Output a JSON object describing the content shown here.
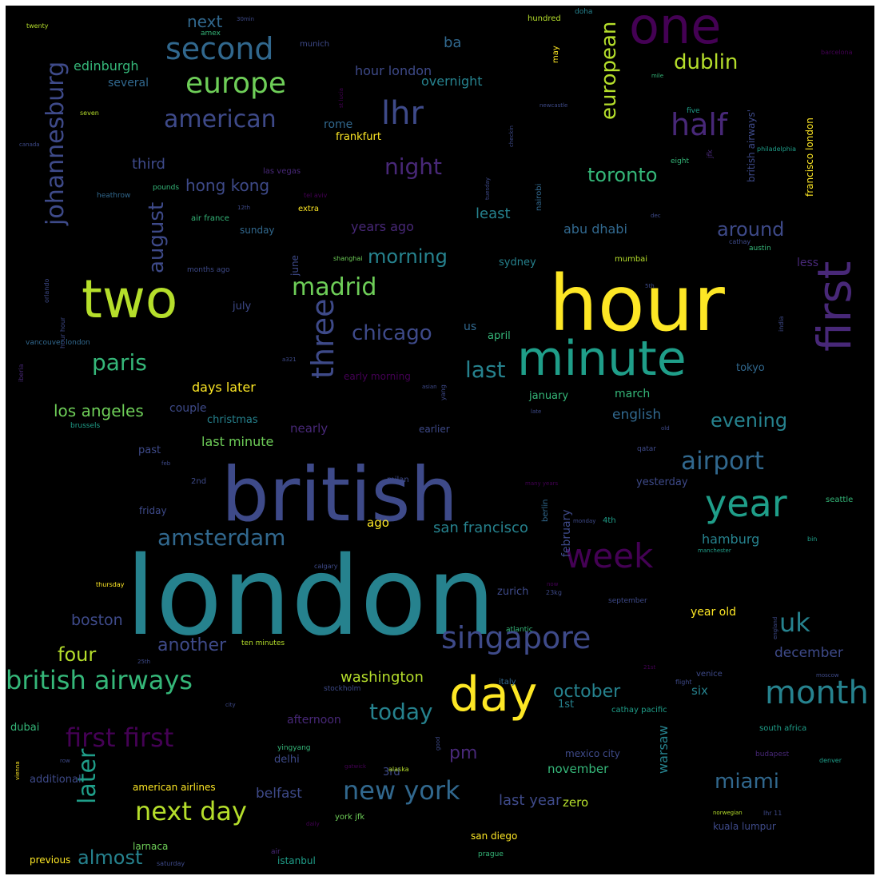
{
  "palette": {
    "background": "#000000",
    "p1": "#440154",
    "p2": "#482878",
    "p3": "#3e4a89",
    "p4": "#31688e",
    "p5": "#26828e",
    "p6": "#1f9e89",
    "p7": "#35b779",
    "p8": "#6ece58",
    "p9": "#b5de2b",
    "p10": "#fde725"
  },
  "words": [
    {
      "text": "london",
      "color": "#26828e"
    },
    {
      "text": "hour",
      "color": "#fde725"
    },
    {
      "text": "british",
      "color": "#3e4a89"
    },
    {
      "text": "minute",
      "color": "#1f9e89"
    },
    {
      "text": "two",
      "color": "#b5de2b"
    },
    {
      "text": "first",
      "color": "#482878"
    },
    {
      "text": "one",
      "color": "#440154"
    },
    {
      "text": "day",
      "color": "#fde725"
    },
    {
      "text": "year",
      "color": "#1f9e89"
    },
    {
      "text": "singapore",
      "color": "#3e4a89"
    },
    {
      "text": "week",
      "color": "#440154"
    },
    {
      "text": "month",
      "color": "#26828e"
    },
    {
      "text": "three",
      "color": "#3e4a89"
    },
    {
      "text": "second",
      "color": "#31688e"
    },
    {
      "text": "europe",
      "color": "#6ece58"
    },
    {
      "text": "lhr",
      "color": "#3e4a89"
    },
    {
      "text": "half",
      "color": "#482878"
    },
    {
      "text": "british airways",
      "color": "#35b779"
    },
    {
      "text": "first first",
      "color": "#440154"
    },
    {
      "text": "new york",
      "color": "#31688e"
    },
    {
      "text": "next day",
      "color": "#b5de2b"
    },
    {
      "text": "airport",
      "color": "#31688e"
    },
    {
      "text": "american",
      "color": "#3e4a89"
    },
    {
      "text": "johannesburg",
      "color": "#3e4a89"
    },
    {
      "text": "later",
      "color": "#1f9e89"
    },
    {
      "text": "amsterdam",
      "color": "#31688e"
    },
    {
      "text": "madrid",
      "color": "#6ece58"
    },
    {
      "text": "uk",
      "color": "#26828e"
    },
    {
      "text": "paris",
      "color": "#35b779"
    },
    {
      "text": "european",
      "color": "#b5de2b"
    },
    {
      "text": "night",
      "color": "#482878"
    },
    {
      "text": "today",
      "color": "#26828e"
    },
    {
      "text": "last",
      "color": "#26828e"
    },
    {
      "text": "chicago",
      "color": "#3e4a89"
    },
    {
      "text": "morning",
      "color": "#26828e"
    },
    {
      "text": "august",
      "color": "#3e4a89"
    },
    {
      "text": "dublin",
      "color": "#b5de2b"
    },
    {
      "text": "toronto",
      "color": "#35b779"
    },
    {
      "text": "around",
      "color": "#3e4a89"
    },
    {
      "text": "miami",
      "color": "#31688e"
    },
    {
      "text": "evening",
      "color": "#26828e"
    },
    {
      "text": "los angeles",
      "color": "#6ece58"
    },
    {
      "text": "october",
      "color": "#26828e"
    },
    {
      "text": "four",
      "color": "#b5de2b"
    },
    {
      "text": "almost",
      "color": "#26828e"
    },
    {
      "text": "another",
      "color": "#3e4a89"
    },
    {
      "text": "washington",
      "color": "#b5de2b"
    },
    {
      "text": "pm",
      "color": "#482878"
    },
    {
      "text": "san francisco",
      "color": "#26828e"
    },
    {
      "text": "boston",
      "color": "#3e4a89"
    },
    {
      "text": "next",
      "color": "#31688e"
    },
    {
      "text": "edinburgh",
      "color": "#35b779"
    },
    {
      "text": "hong kong",
      "color": "#3e4a89"
    },
    {
      "text": "hour london",
      "color": "#3e4a89"
    },
    {
      "text": "overnight",
      "color": "#26828e"
    },
    {
      "text": "days later",
      "color": "#fde725"
    },
    {
      "text": "last minute",
      "color": "#6ece58"
    },
    {
      "text": "ba",
      "color": "#31688e"
    },
    {
      "text": "least",
      "color": "#26828e"
    },
    {
      "text": "abu dhabi",
      "color": "#31688e"
    },
    {
      "text": "hamburg",
      "color": "#26828e"
    },
    {
      "text": "years ago",
      "color": "#482878"
    },
    {
      "text": "third",
      "color": "#3e4a89"
    },
    {
      "text": "english",
      "color": "#31688e"
    },
    {
      "text": "december",
      "color": "#3e4a89"
    },
    {
      "text": "belfast",
      "color": "#3e4a89"
    },
    {
      "text": "last year",
      "color": "#3e4a89"
    },
    {
      "text": "afternoon",
      "color": "#482878"
    },
    {
      "text": "warsaw",
      "color": "#26828e"
    },
    {
      "text": "november",
      "color": "#35b779"
    },
    {
      "text": "ago",
      "color": "#fde725"
    },
    {
      "text": "rome",
      "color": "#31688e"
    },
    {
      "text": "frankfurt",
      "color": "#fde725"
    },
    {
      "text": "several",
      "color": "#31688e"
    },
    {
      "text": "couple",
      "color": "#3e4a89"
    },
    {
      "text": "christmas",
      "color": "#26828e"
    },
    {
      "text": "nearly",
      "color": "#482878"
    },
    {
      "text": "year old",
      "color": "#fde725"
    },
    {
      "text": "zurich",
      "color": "#3e4a89"
    },
    {
      "text": "dubai",
      "color": "#35b779"
    },
    {
      "text": "zero",
      "color": "#b5de2b"
    },
    {
      "text": "six",
      "color": "#26828e"
    },
    {
      "text": "sydney",
      "color": "#26828e"
    },
    {
      "text": "april",
      "color": "#35b779"
    },
    {
      "text": "july",
      "color": "#3e4a89"
    },
    {
      "text": "us",
      "color": "#31688e"
    },
    {
      "text": "past",
      "color": "#3e4a89"
    },
    {
      "text": "earlier",
      "color": "#3e4a89"
    },
    {
      "text": "january",
      "color": "#35b779"
    },
    {
      "text": "march",
      "color": "#35b779"
    },
    {
      "text": "tokyo",
      "color": "#31688e"
    },
    {
      "text": "less",
      "color": "#482878"
    },
    {
      "text": "yesterday",
      "color": "#3e4a89"
    },
    {
      "text": "february",
      "color": "#3e4a89"
    },
    {
      "text": "1st",
      "color": "#26828e"
    },
    {
      "text": "3rd",
      "color": "#3e4a89"
    },
    {
      "text": "delhi",
      "color": "#3e4a89"
    },
    {
      "text": "additional",
      "color": "#3e4a89"
    },
    {
      "text": "american airlines",
      "color": "#fde725"
    },
    {
      "text": "kuala lumpur",
      "color": "#3e4a89"
    },
    {
      "text": "istanbul",
      "color": "#1f9e89"
    },
    {
      "text": "san diego",
      "color": "#fde725"
    },
    {
      "text": "mexico city",
      "color": "#3e4a89"
    },
    {
      "text": "friday",
      "color": "#3e4a89"
    },
    {
      "text": "sunday",
      "color": "#31688e"
    },
    {
      "text": "june",
      "color": "#3e4a89"
    },
    {
      "text": "british airways'",
      "color": "#3e4a89"
    },
    {
      "text": "francisco london",
      "color": "#fde725"
    },
    {
      "text": "early morning",
      "color": "#440154"
    },
    {
      "text": "larnaca",
      "color": "#6ece58"
    },
    {
      "text": "previous",
      "color": "#fde725"
    },
    {
      "text": "york jfk",
      "color": "#6ece58"
    },
    {
      "text": "hundred",
      "color": "#b5de2b"
    },
    {
      "text": "may",
      "color": "#fde725"
    },
    {
      "text": "munich",
      "color": "#3e4a89"
    },
    {
      "text": "amex",
      "color": "#35b779"
    },
    {
      "text": "twenty",
      "color": "#b5de2b"
    },
    {
      "text": "30min",
      "color": "#3e4a89"
    },
    {
      "text": "doha",
      "color": "#26828e"
    },
    {
      "text": "barcelona",
      "color": "#440154"
    },
    {
      "text": "mile",
      "color": "#35b779"
    },
    {
      "text": "five",
      "color": "#1f9e89"
    },
    {
      "text": "eight",
      "color": "#35b779"
    },
    {
      "text": "jfk",
      "color": "#482878"
    },
    {
      "text": "philadelphia",
      "color": "#1f9e89"
    },
    {
      "text": "newcastle",
      "color": "#3e4a89"
    },
    {
      "text": "st lucia",
      "color": "#440154"
    },
    {
      "text": "checkin",
      "color": "#3e4a89"
    },
    {
      "text": "seven",
      "color": "#b5de2b"
    },
    {
      "text": "canada",
      "color": "#3e4a89"
    },
    {
      "text": "heathrow",
      "color": "#31688e"
    },
    {
      "text": "pounds",
      "color": "#35b779"
    },
    {
      "text": "las vegas",
      "color": "#482878"
    },
    {
      "text": "tel aviv",
      "color": "#440154"
    },
    {
      "text": "12th",
      "color": "#3e4a89"
    },
    {
      "text": "extra",
      "color": "#fde725"
    },
    {
      "text": "air france",
      "color": "#35b779"
    },
    {
      "text": "tuesday",
      "color": "#3e4a89"
    },
    {
      "text": "nairobi",
      "color": "#31688e"
    },
    {
      "text": "dec",
      "color": "#3e4a89"
    },
    {
      "text": "cathay",
      "color": "#3e4a89"
    },
    {
      "text": "austin",
      "color": "#35b779"
    },
    {
      "text": "shanghai",
      "color": "#6ece58"
    },
    {
      "text": "mumbai",
      "color": "#b5de2b"
    },
    {
      "text": "months ago",
      "color": "#3e4a89"
    },
    {
      "text": "orlando",
      "color": "#3e4a89"
    },
    {
      "text": "hour hour",
      "color": "#3e4a89"
    },
    {
      "text": "india",
      "color": "#3e4a89"
    },
    {
      "text": "5th",
      "color": "#3e4a89"
    },
    {
      "text": "vancouver london",
      "color": "#31688e"
    },
    {
      "text": "a321",
      "color": "#3e4a89"
    },
    {
      "text": "iberia",
      "color": "#482878"
    },
    {
      "text": "asian",
      "color": "#3e4a89"
    },
    {
      "text": "yang",
      "color": "#3e4a89"
    },
    {
      "text": "late",
      "color": "#3e4a89"
    },
    {
      "text": "old",
      "color": "#3e4a89"
    },
    {
      "text": "brussels",
      "color": "#1f9e89"
    },
    {
      "text": "qatar",
      "color": "#3e4a89"
    },
    {
      "text": "feb",
      "color": "#3e4a89"
    },
    {
      "text": "milan",
      "color": "#3e4a89"
    },
    {
      "text": "berlin",
      "color": "#31688e"
    },
    {
      "text": "many years",
      "color": "#440154"
    },
    {
      "text": "monday",
      "color": "#3e4a89"
    },
    {
      "text": "2nd",
      "color": "#3e4a89"
    },
    {
      "text": "4th",
      "color": "#1f9e89"
    },
    {
      "text": "seattle",
      "color": "#35b779"
    },
    {
      "text": "bin",
      "color": "#1f9e89"
    },
    {
      "text": "manchester",
      "color": "#1f9e89"
    },
    {
      "text": "calgary",
      "color": "#3e4a89"
    },
    {
      "text": "thursday",
      "color": "#fde725"
    },
    {
      "text": "now",
      "color": "#440154"
    },
    {
      "text": "23kg",
      "color": "#3e4a89"
    },
    {
      "text": "september",
      "color": "#3e4a89"
    },
    {
      "text": "atlantic",
      "color": "#35b779"
    },
    {
      "text": "england",
      "color": "#3e4a89"
    },
    {
      "text": "ten minutes",
      "color": "#b5de2b"
    },
    {
      "text": "25th",
      "color": "#3e4a89"
    },
    {
      "text": "21st",
      "color": "#440154"
    },
    {
      "text": "venice",
      "color": "#3e4a89"
    },
    {
      "text": "moscow",
      "color": "#3e4a89"
    },
    {
      "text": "italy",
      "color": "#31688e"
    },
    {
      "text": "flight",
      "color": "#3e4a89"
    },
    {
      "text": "stockholm",
      "color": "#3e4a89"
    },
    {
      "text": "city",
      "color": "#3e4a89"
    },
    {
      "text": "cathay pacific",
      "color": "#1f9e89"
    },
    {
      "text": "south africa",
      "color": "#1f9e89"
    },
    {
      "text": "yingyang",
      "color": "#35b779"
    },
    {
      "text": "good",
      "color": "#3e4a89"
    },
    {
      "text": "vienna",
      "color": "#fde725"
    },
    {
      "text": "row",
      "color": "#3e4a89"
    },
    {
      "text": "gatwick",
      "color": "#440154"
    },
    {
      "text": "alaska",
      "color": "#b5de2b"
    },
    {
      "text": "budapest",
      "color": "#482878"
    },
    {
      "text": "denver",
      "color": "#1f9e89"
    },
    {
      "text": "norwegian",
      "color": "#b5de2b"
    },
    {
      "text": "lhr 11",
      "color": "#3e4a89"
    },
    {
      "text": "daily",
      "color": "#440154"
    },
    {
      "text": "air",
      "color": "#482878"
    },
    {
      "text": "prague",
      "color": "#35b779"
    },
    {
      "text": "saturday",
      "color": "#3e4a89"
    }
  ]
}
